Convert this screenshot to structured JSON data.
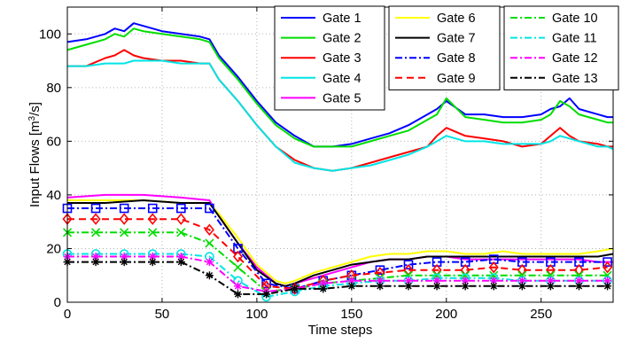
{
  "chart_data": {
    "type": "line",
    "xlabel": "Time steps",
    "ylabel_main": "Input Flows [m",
    "ylabel_sup": "3",
    "ylabel_tail": "/s]",
    "xlim": [
      0,
      288
    ],
    "ylim": [
      0,
      110
    ],
    "xticks": [
      0,
      50,
      100,
      150,
      200,
      250
    ],
    "yticks": [
      0,
      20,
      40,
      60,
      80,
      100
    ],
    "grid": true,
    "legend_position": "top-right, three columns",
    "series": [
      {
        "name": "Gate 1",
        "color": "#0000ff",
        "dash": "solid",
        "marker": "none",
        "x": [
          0,
          10,
          20,
          25,
          30,
          35,
          40,
          50,
          60,
          70,
          75,
          80,
          90,
          100,
          110,
          120,
          130,
          140,
          150,
          160,
          170,
          180,
          190,
          195,
          200,
          210,
          220,
          230,
          240,
          250,
          255,
          260,
          265,
          270,
          280,
          285,
          288
        ],
        "y": [
          97,
          98,
          100,
          102,
          101,
          104,
          103,
          101,
          100,
          99,
          98,
          92,
          84,
          75,
          67,
          62,
          58,
          58,
          59,
          61,
          63,
          66,
          70,
          72,
          75,
          70,
          70,
          69,
          69,
          70,
          72,
          73,
          76,
          72,
          70,
          69,
          69
        ]
      },
      {
        "name": "Gate 2",
        "color": "#00dd00",
        "dash": "solid",
        "marker": "none",
        "x": [
          0,
          10,
          20,
          25,
          30,
          35,
          40,
          50,
          60,
          70,
          75,
          80,
          90,
          100,
          110,
          120,
          130,
          140,
          150,
          160,
          170,
          180,
          190,
          195,
          200,
          210,
          220,
          230,
          240,
          250,
          255,
          260,
          265,
          270,
          280,
          285,
          288
        ],
        "y": [
          94,
          96,
          98,
          100,
          99,
          102,
          101,
          100,
          99,
          98,
          97,
          91,
          83,
          74,
          66,
          61,
          58,
          58,
          58,
          60,
          62,
          64,
          68,
          70,
          76,
          69,
          68,
          67,
          67,
          68,
          70,
          75,
          73,
          70,
          68,
          67,
          67
        ]
      },
      {
        "name": "Gate 3",
        "color": "#ff0000",
        "dash": "solid",
        "marker": "none",
        "x": [
          0,
          10,
          20,
          25,
          30,
          35,
          40,
          50,
          60,
          70,
          75,
          80,
          90,
          100,
          110,
          120,
          130,
          140,
          150,
          160,
          170,
          180,
          190,
          195,
          200,
          210,
          220,
          230,
          240,
          250,
          255,
          260,
          265,
          270,
          280,
          285,
          288
        ],
        "y": [
          88,
          88,
          91,
          92,
          94,
          92,
          91,
          90,
          90,
          89,
          89,
          83,
          75,
          66,
          58,
          53,
          50,
          49,
          50,
          52,
          54,
          56,
          58,
          62,
          65,
          62,
          61,
          60,
          58,
          59,
          62,
          65,
          62,
          60,
          59,
          58,
          58
        ]
      },
      {
        "name": "Gate 4",
        "color": "#00e5e5",
        "dash": "solid",
        "marker": "none",
        "x": [
          0,
          10,
          20,
          25,
          30,
          35,
          40,
          50,
          60,
          70,
          75,
          80,
          90,
          100,
          110,
          120,
          130,
          140,
          150,
          160,
          170,
          180,
          190,
          195,
          200,
          210,
          220,
          230,
          240,
          250,
          255,
          260,
          265,
          270,
          280,
          285,
          288
        ],
        "y": [
          88,
          88,
          89,
          89,
          89,
          90,
          90,
          90,
          89,
          89,
          89,
          83,
          75,
          66,
          58,
          52,
          50,
          49,
          50,
          51,
          53,
          55,
          58,
          60,
          62,
          60,
          60,
          59,
          59,
          59,
          60,
          62,
          61,
          60,
          58,
          58,
          57
        ]
      },
      {
        "name": "Gate 5",
        "color": "#ff00ff",
        "dash": "solid",
        "marker": "none",
        "x": [
          0,
          20,
          40,
          60,
          75,
          80,
          90,
          100,
          110,
          115,
          120,
          130,
          140,
          150,
          160,
          170,
          180,
          190,
          200,
          210,
          220,
          230,
          240,
          250,
          260,
          270,
          280,
          288
        ],
        "y": [
          39,
          40,
          40,
          39,
          38,
          32,
          22,
          13,
          7,
          6,
          7,
          9,
          11,
          13,
          15,
          16,
          16,
          17,
          17,
          16,
          16,
          16,
          16,
          16,
          16,
          16,
          15,
          15
        ]
      },
      {
        "name": "Gate 6",
        "color": "#ffff00",
        "dash": "solid",
        "marker": "none",
        "x": [
          0,
          20,
          40,
          60,
          75,
          80,
          90,
          100,
          110,
          115,
          120,
          130,
          140,
          150,
          160,
          170,
          180,
          190,
          200,
          210,
          220,
          230,
          240,
          250,
          260,
          270,
          280,
          288
        ],
        "y": [
          38,
          38,
          38,
          37,
          37,
          33,
          24,
          14,
          8,
          7,
          8,
          11,
          13,
          15,
          17,
          18,
          18,
          19,
          19,
          18,
          18,
          19,
          18,
          18,
          18,
          18,
          19,
          20
        ]
      },
      {
        "name": "Gate 7",
        "color": "#000000",
        "dash": "solid",
        "marker": "none",
        "x": [
          0,
          20,
          40,
          60,
          75,
          80,
          90,
          100,
          110,
          115,
          120,
          130,
          140,
          150,
          160,
          170,
          180,
          190,
          200,
          210,
          220,
          230,
          240,
          250,
          260,
          270,
          280,
          288
        ],
        "y": [
          37,
          37,
          38,
          37,
          37,
          32,
          22,
          12,
          7,
          6,
          7,
          10,
          12,
          14,
          15,
          16,
          16,
          17,
          17,
          17,
          17,
          17,
          17,
          17,
          17,
          17,
          17,
          18
        ]
      },
      {
        "name": "Gate 8",
        "color": "#0000ff",
        "dash": "8 3 2 3",
        "marker": "square",
        "x": [
          0,
          15,
          30,
          45,
          60,
          75,
          90,
          105,
          120,
          135,
          150,
          165,
          180,
          195,
          210,
          225,
          240,
          255,
          270,
          285
        ],
        "y": [
          35,
          35,
          35,
          35,
          35,
          35,
          20,
          7,
          5,
          8,
          10,
          12,
          14,
          15,
          15,
          16,
          15,
          15,
          15,
          15
        ]
      },
      {
        "name": "Gate 9",
        "color": "#ff0000",
        "dash": "8 5",
        "marker": "diamond",
        "x": [
          0,
          15,
          30,
          45,
          60,
          75,
          90,
          105,
          120,
          135,
          150,
          165,
          180,
          195,
          210,
          225,
          240,
          255,
          270,
          285
        ],
        "y": [
          31,
          31,
          31,
          31,
          31,
          27,
          17,
          6,
          5,
          8,
          10,
          11,
          12,
          12,
          12,
          13,
          12,
          12,
          12,
          13
        ]
      },
      {
        "name": "Gate 10",
        "color": "#00dd00",
        "dash": "8 3 2 3",
        "marker": "x",
        "x": [
          0,
          15,
          30,
          45,
          60,
          75,
          90,
          105,
          120,
          135,
          150,
          165,
          180,
          195,
          210,
          225,
          240,
          255,
          270,
          285
        ],
        "y": [
          26,
          26,
          26,
          26,
          26,
          22,
          13,
          4,
          5,
          7,
          8,
          9,
          10,
          10,
          10,
          10,
          10,
          10,
          10,
          10
        ]
      },
      {
        "name": "Gate 11",
        "color": "#00e5e5",
        "dash": "8 3 2 3",
        "marker": "circle",
        "x": [
          0,
          15,
          30,
          45,
          60,
          75,
          90,
          105,
          120,
          135,
          150,
          165,
          180,
          195,
          210,
          225,
          240,
          255,
          270,
          285
        ],
        "y": [
          18,
          18,
          18,
          18,
          18,
          17,
          8,
          2,
          4,
          6,
          7,
          8,
          8,
          9,
          9,
          9,
          8,
          8,
          8,
          8
        ]
      },
      {
        "name": "Gate 12",
        "color": "#ff00ff",
        "dash": "8 3 2 3",
        "marker": "star",
        "x": [
          0,
          15,
          30,
          45,
          60,
          75,
          90,
          105,
          120,
          135,
          150,
          165,
          180,
          195,
          210,
          225,
          240,
          255,
          270,
          285
        ],
        "y": [
          17,
          17,
          17,
          17,
          17,
          15,
          6,
          4,
          5,
          7,
          8,
          8,
          8,
          8,
          8,
          8,
          8,
          8,
          8,
          8
        ]
      },
      {
        "name": "Gate 13",
        "color": "#000000",
        "dash": "8 3 2 3",
        "marker": "star",
        "x": [
          0,
          15,
          30,
          45,
          60,
          75,
          90,
          105,
          120,
          135,
          150,
          165,
          180,
          195,
          210,
          225,
          240,
          255,
          270,
          285
        ],
        "y": [
          15,
          15,
          15,
          15,
          15,
          10,
          3,
          3,
          5,
          5,
          6,
          6,
          6,
          6,
          6,
          6,
          6,
          6,
          6,
          6
        ]
      }
    ]
  }
}
